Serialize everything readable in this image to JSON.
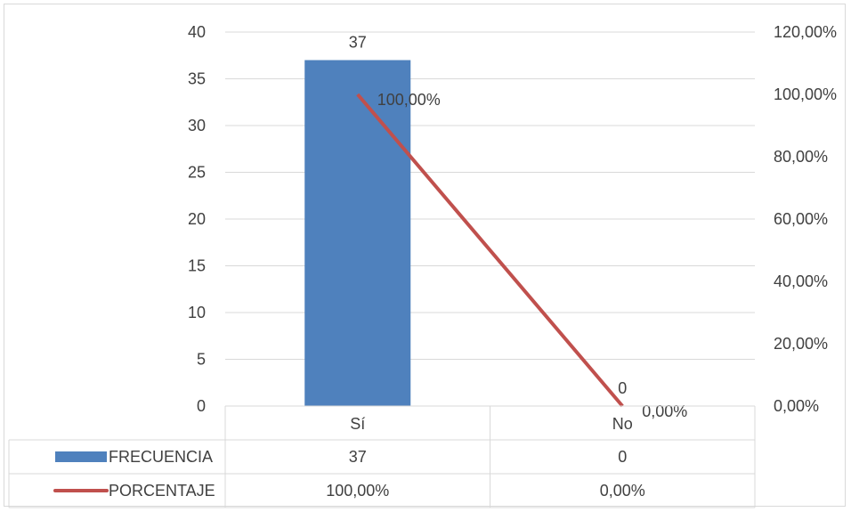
{
  "chart_data": {
    "type": "bar",
    "categories": [
      "Sí",
      "No"
    ],
    "series": [
      {
        "name": "FRECUENCIA",
        "kind": "bar",
        "axis": "left",
        "color": "#4f81bd",
        "values": [
          37,
          0
        ],
        "data_labels": [
          "37",
          "0"
        ],
        "table_values": [
          "37",
          "0"
        ]
      },
      {
        "name": "PORCENTAJE",
        "kind": "line",
        "axis": "right",
        "color": "#c0504d",
        "values": [
          100,
          0
        ],
        "data_labels": [
          "100,00%",
          "0,00%"
        ],
        "table_values": [
          "100,00%",
          "0,00%"
        ]
      }
    ],
    "y_left": {
      "min": 0,
      "max": 40,
      "ticks": [
        "0",
        "5",
        "10",
        "15",
        "20",
        "25",
        "30",
        "35",
        "40"
      ]
    },
    "y_right": {
      "min": 0,
      "max": 120,
      "ticks": [
        "0,00%",
        "20,00%",
        "40,00%",
        "60,00%",
        "80,00%",
        "100,00%",
        "120,00%"
      ]
    },
    "grid": true,
    "legend": "data-table"
  }
}
